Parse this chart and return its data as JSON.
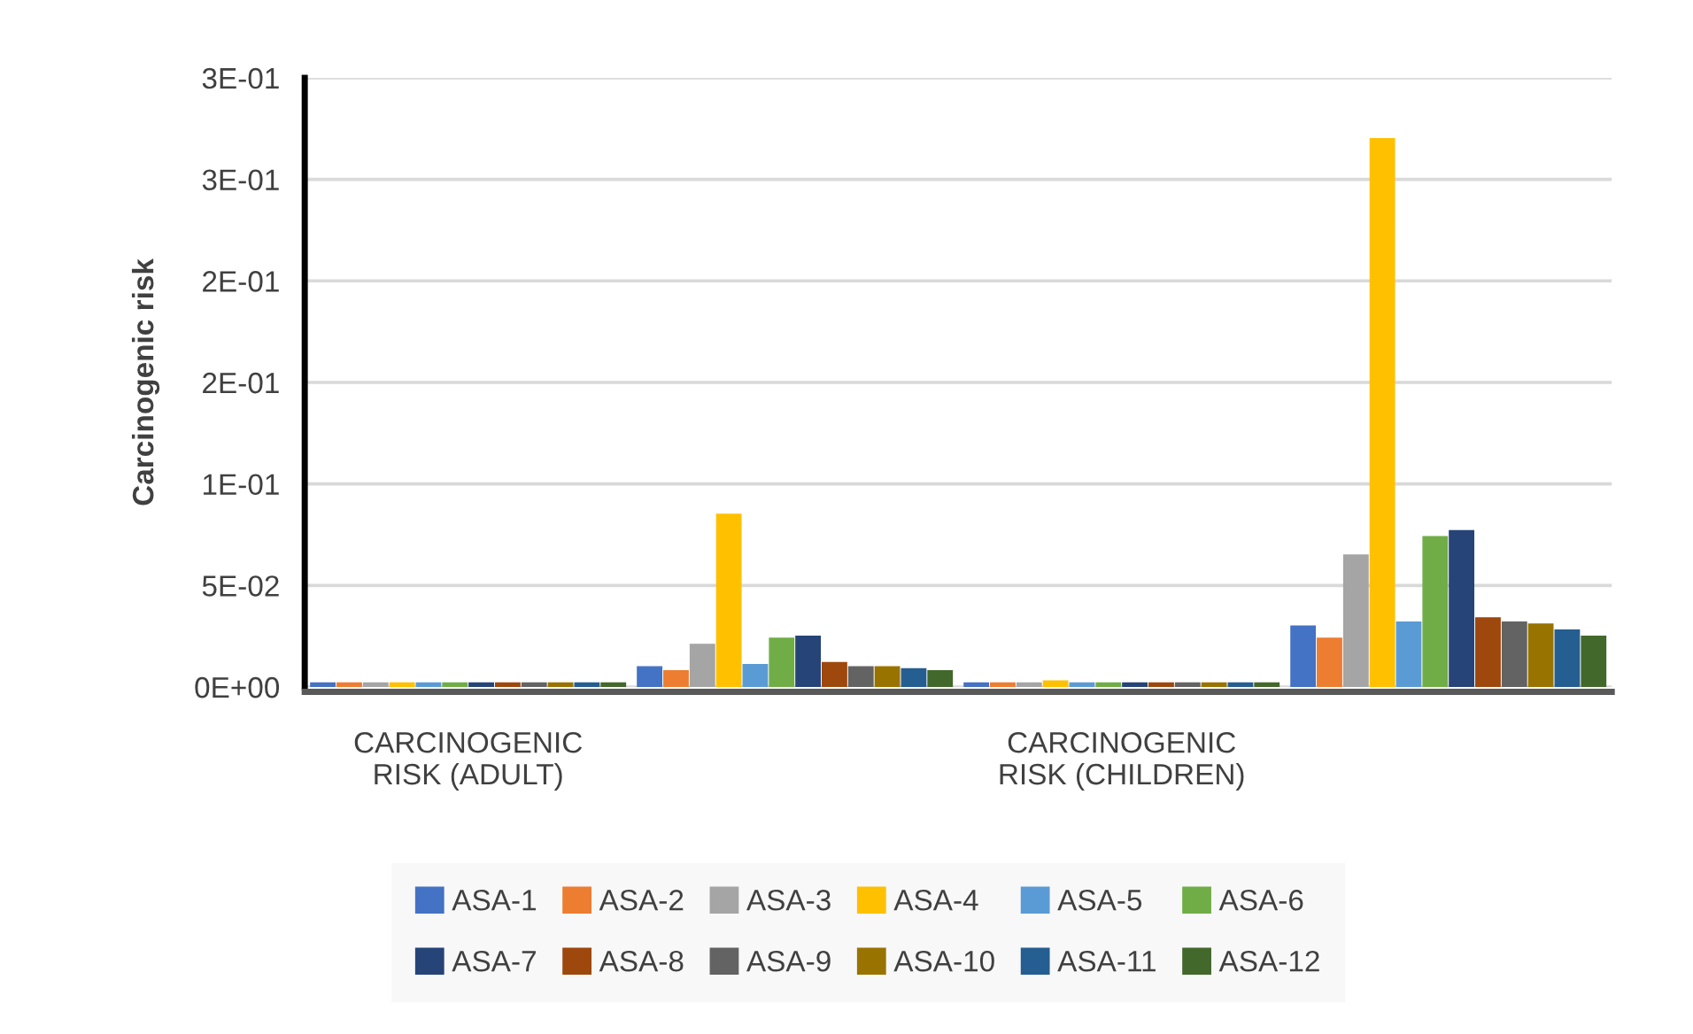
{
  "chart_data": {
    "type": "bar",
    "ylabel": "Carcinogenic risk",
    "categories": [
      "CARCINOGENIC RISK (ADULT)",
      null,
      "CARCINOGENIC RISK (CHILDREN)",
      null
    ],
    "series": [
      {
        "name": "ASA-1",
        "color": "#4472c4",
        "values": [
          0.002,
          0.01,
          0.002,
          0.03
        ]
      },
      {
        "name": "ASA-2",
        "color": "#ed7d31",
        "values": [
          0.002,
          0.008,
          0.002,
          0.024
        ]
      },
      {
        "name": "ASA-3",
        "color": "#a5a5a5",
        "values": [
          0.002,
          0.021,
          0.002,
          0.065
        ]
      },
      {
        "name": "ASA-4",
        "color": "#ffc000",
        "values": [
          0.002,
          0.085,
          0.003,
          0.27
        ]
      },
      {
        "name": "ASA-5",
        "color": "#5b9bd5",
        "values": [
          0.002,
          0.011,
          0.002,
          0.032
        ]
      },
      {
        "name": "ASA-6",
        "color": "#70ad47",
        "values": [
          0.002,
          0.024,
          0.002,
          0.074
        ]
      },
      {
        "name": "ASA-7",
        "color": "#264478",
        "values": [
          0.002,
          0.025,
          0.002,
          0.077
        ]
      },
      {
        "name": "ASA-8",
        "color": "#9e480e",
        "values": [
          0.002,
          0.012,
          0.002,
          0.034
        ]
      },
      {
        "name": "ASA-9",
        "color": "#636363",
        "values": [
          0.002,
          0.01,
          0.002,
          0.032
        ]
      },
      {
        "name": "ASA-10",
        "color": "#997300",
        "values": [
          0.002,
          0.01,
          0.002,
          0.031
        ]
      },
      {
        "name": "ASA-11",
        "color": "#255e91",
        "values": [
          0.002,
          0.009,
          0.002,
          0.028
        ]
      },
      {
        "name": "ASA-12",
        "color": "#43682b",
        "values": [
          0.002,
          0.008,
          0.002,
          0.025
        ]
      }
    ],
    "ylim": [
      0,
      0.3
    ],
    "yticks": [
      {
        "value": 0,
        "label": "0E+00"
      },
      {
        "value": 0.05,
        "label": "5E-02"
      },
      {
        "value": 0.1,
        "label": "1E-01"
      },
      {
        "value": 0.15,
        "label": "2E-01"
      },
      {
        "value": 0.2,
        "label": "2E-01"
      },
      {
        "value": 0.25,
        "label": "3E-01"
      },
      {
        "value": 0.3,
        "label": "3E-01"
      }
    ],
    "grid": "y",
    "legend": "bottom"
  }
}
